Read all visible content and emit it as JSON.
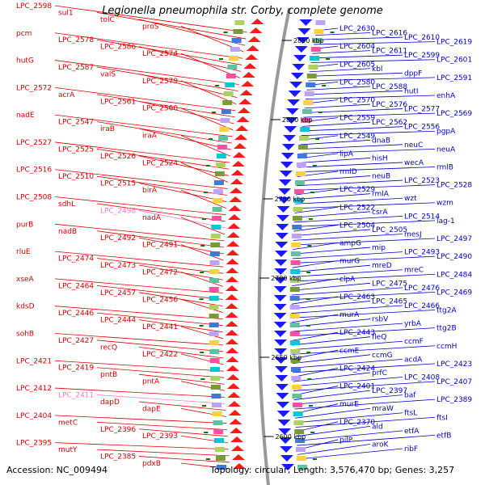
{
  "title": "Legionella pneumophila str. Corby, complete genome",
  "footer": {
    "accession": "Accession: NC_009494",
    "summary": "Topology: circular; Length: 3,576,470 bp; Genes: 3,257"
  },
  "colors": {
    "reverse_label": "#e00000",
    "forward_label": "#0000cc",
    "rna_label": "#ff77c8",
    "reverse_arrow": "#ff1a1a",
    "forward_arrow": "#1a1aff",
    "backbone": "#999999",
    "tick": "#007a00"
  },
  "kbp_markers": [
    "2850 kbp",
    "2800 kbp",
    "2750 kbp",
    "2700 kbp",
    "2650 kbp",
    "2600 kbp"
  ],
  "left_labels": [
    "LPC_2598",
    "sul1",
    "tolC",
    "proS",
    "pcm",
    "LPC_2578",
    "LPC_2586",
    "LPC_2574",
    "hutG",
    "LPC_2587",
    "valS",
    "LPC_2579",
    "LPC_2572",
    "acrA",
    "LPC_2561",
    "LPC_2560",
    "nadE",
    "LPC_2547",
    "iraB",
    "iraA",
    "LPC_2527",
    "LPC_2525",
    "LPC_2526",
    "LPC_2524",
    "LPC_2516",
    "LPC_2510",
    "LPC_2515",
    "birA",
    "LPC_2508",
    "sdhL",
    "LPC_2498",
    "nadA",
    "purB",
    "nadB",
    "LPC_2492",
    "LPC_2491",
    "rluE",
    "LPC_2474",
    "LPC_2473",
    "LPC_2472",
    "xseA",
    "LPC_2464",
    "LPC_2457",
    "LPC_2456",
    "kdsD",
    "LPC_2446",
    "LPC_2444",
    "LPC_2441",
    "sohB",
    "LPC_2427",
    "recQ",
    "LPC_2422",
    "LPC_2421",
    "LPC_2419",
    "pntB",
    "pntA",
    "LPC_2412",
    "LPC_2411",
    "dapD",
    "dapE",
    "LPC_2404",
    "metC",
    "LPC_2396",
    "LPC_2393",
    "LPC_2395",
    "mutY",
    "LPC_2385",
    "pdxB"
  ],
  "right_labels": [
    "LPC_2630",
    "LPC_2616",
    "LPC_2610",
    "LPC_2619",
    "LPC_2604",
    "LPC_2611",
    "LPC_2599",
    "LPC_2601",
    "LPC_2605",
    "kbl",
    "dppF",
    "LPC_2591",
    "LPC_2580",
    "LPC_2588",
    "hutI",
    "enhA",
    "LPC_2570",
    "LPC_2576",
    "LPC_2577",
    "LPC_2569",
    "LPC_2559",
    "LPC_2562",
    "LPC_2556",
    "pgpA",
    "LPC_2549",
    "dnaB",
    "neuC",
    "neuA",
    "lipA",
    "hisH",
    "wecA",
    "rmlB",
    "rmlD",
    "neuB",
    "LPC_2523",
    "LPC_2528",
    "LPC_2529",
    "rmlA",
    "wzt",
    "wzm",
    "LPC_2522",
    "csrA",
    "LPC_2514",
    "lag-1",
    "LPC_2504",
    "LPC_2505",
    "mesJ",
    "LPC_2497",
    "ampG",
    "mip",
    "LPC_2493",
    "LPC_2490",
    "murG",
    "mreD",
    "mreC",
    "LPC_2484",
    "clpA",
    "LPC_2475",
    "LPC_2476",
    "LPC_2469",
    "LPC_2463",
    "LPC_2465",
    "LPC_2466",
    "ttg2A",
    "murA",
    "rsbV",
    "yrbA",
    "ttg2B",
    "LPC_2443",
    "fleQ",
    "ccmF",
    "ccmH",
    "ccmE",
    "ccmG",
    "acdA",
    "LPC_2423",
    "LPC_2424",
    "prfC",
    "LPC_2408",
    "LPC_2407",
    "LPC_2401",
    "LPC_2397",
    "baf",
    "LPC_2389",
    "murE",
    "mraW",
    "ftsL",
    "ftsI",
    "LPC_2370",
    "ald",
    "etfA",
    "etfB",
    "pilP",
    "aroK",
    "ribF"
  ]
}
